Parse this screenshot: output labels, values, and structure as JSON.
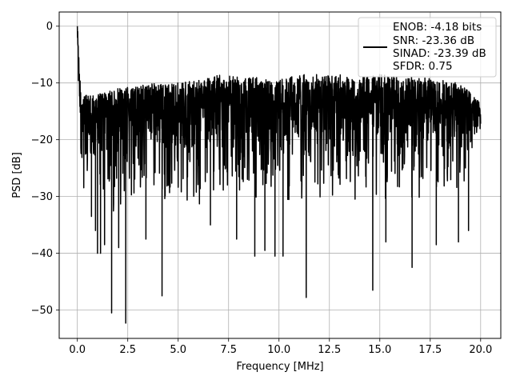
{
  "chart_data": {
    "type": "line",
    "title": "",
    "xlabel": "Frequency [MHz]",
    "ylabel": "PSD [dB]",
    "xlim": [
      -0.9,
      21.0
    ],
    "ylim": [
      -55,
      2.5
    ],
    "x_ticks": [
      0.0,
      2.5,
      5.0,
      7.5,
      10.0,
      12.5,
      15.0,
      17.5,
      20.0
    ],
    "x_tick_labels": [
      "0.0",
      "2.5",
      "5.0",
      "7.5",
      "10.0",
      "12.5",
      "15.0",
      "17.5",
      "20.0"
    ],
    "y_ticks": [
      0,
      -10,
      -20,
      -30,
      -40,
      -50
    ],
    "y_tick_labels": [
      "0",
      "−10",
      "−20",
      "−30",
      "−40",
      "−50"
    ],
    "grid": true,
    "legend_position": "top-right",
    "legend_entries": [
      "ENOB: -4.18 bits",
      "SNR: -23.36 dB",
      "SINAD: -23.39 dB",
      "SFDR: 0.75"
    ],
    "line_color": "#000000",
    "series": [
      {
        "x": [
          0.0,
          0.02,
          0.05,
          0.1,
          0.15,
          0.2,
          0.3,
          0.5,
          0.7,
          1.0,
          1.5,
          2.0,
          2.5,
          3.0,
          4.0,
          5.0,
          6.0,
          7.0,
          8.0,
          9.0,
          10.0,
          11.0,
          12.0,
          13.0,
          14.0,
          15.0,
          16.0,
          17.0,
          18.0,
          19.0,
          20.0
        ],
        "envelope_top": [
          0.0,
          -1.0,
          -2.0,
          -8.0,
          -10.0,
          -12.0,
          -12.5,
          -12.0,
          -12.0,
          -12.0,
          -11.5,
          -11.0,
          -10.5,
          -10.5,
          -10.0,
          -10.0,
          -9.5,
          -8.5,
          -9.0,
          -9.0,
          -9.5,
          -8.5,
          -8.5,
          -8.5,
          -9.0,
          -8.5,
          -9.0,
          -9.0,
          -9.5,
          -10.0,
          -13.5
        ],
        "envelope_bottom": [
          -6.0,
          -10.0,
          -14.0,
          -18.0,
          -24.0,
          -28.0,
          -30.0,
          -32.0,
          -33.0,
          -34.0,
          -35.0,
          -33.0,
          -34.0,
          -32.0,
          -31.0,
          -32.0,
          -32.0,
          -31.0,
          -31.0,
          -31.0,
          -32.0,
          -31.0,
          -31.0,
          -31.0,
          -31.0,
          -32.0,
          -32.0,
          -31.0,
          -32.0,
          -31.0,
          -18.0
        ],
        "deep_dips": [
          [
            0.7,
            -33.5
          ],
          [
            0.9,
            -36.0
          ],
          [
            1.0,
            -40.0
          ],
          [
            1.15,
            -40.0
          ],
          [
            1.35,
            -38.5
          ],
          [
            1.7,
            -50.5
          ],
          [
            2.05,
            -39.0
          ],
          [
            2.4,
            -52.3
          ],
          [
            3.4,
            -37.5
          ],
          [
            4.2,
            -47.5
          ],
          [
            6.6,
            -35.0
          ],
          [
            7.9,
            -37.5
          ],
          [
            8.8,
            -40.5
          ],
          [
            9.3,
            -39.5
          ],
          [
            9.8,
            -40.5
          ],
          [
            10.2,
            -40.5
          ],
          [
            11.35,
            -47.8
          ],
          [
            14.65,
            -46.5
          ],
          [
            15.3,
            -38.0
          ],
          [
            16.6,
            -42.5
          ],
          [
            17.8,
            -38.5
          ],
          [
            18.9,
            -38.0
          ],
          [
            19.4,
            -36.0
          ]
        ]
      }
    ]
  }
}
